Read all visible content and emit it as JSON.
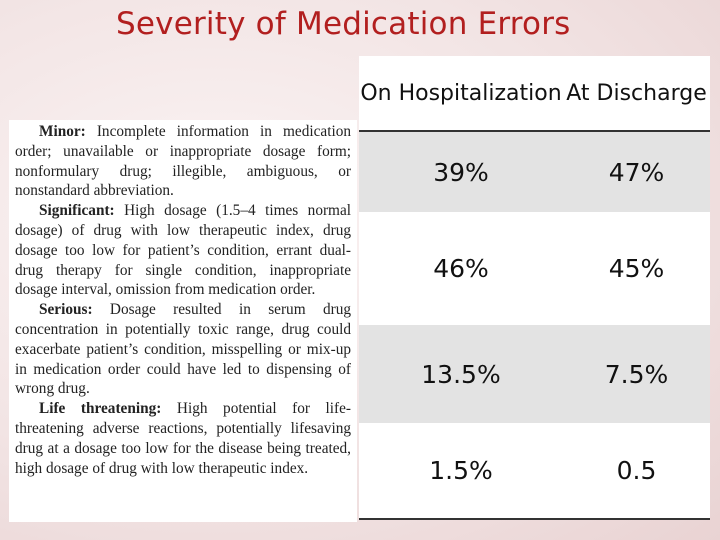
{
  "title": "Severity of Medication Errors",
  "definitions": [
    {
      "term": "Minor:",
      "text": "Incomplete information in medication order; unavailable or inappropriate dosage form; nonformulary drug; illegible, ambiguous, or nonstandard abbreviation."
    },
    {
      "term": "Significant:",
      "text": "High dosage (1.5–4 times normal dosage) of drug with low therapeutic index, drug dosage too low for patient’s condition, errant dual-drug therapy for single condition, inappropriate dosage interval, omission from medication order."
    },
    {
      "term": "Serious:",
      "text": "Dosage resulted in serum drug concentration in potentially toxic range, drug could exacerbate patient’s condition, misspelling or mix-up in medication order could have led to dispensing of wrong drug."
    },
    {
      "term": "Life threatening:",
      "text": "High potential for life-threatening adverse reactions, potentially lifesaving drug at a dosage too low for the disease being treated, high dosage of drug with low therapeutic index."
    }
  ],
  "table": {
    "headers": [
      "On Hospitalization",
      "At Discharge"
    ],
    "rows": [
      [
        "39%",
        "47%"
      ],
      [
        "46%",
        "45%"
      ],
      [
        "13.5%",
        "7.5%"
      ],
      [
        "1.5%",
        "0.5"
      ]
    ]
  }
}
